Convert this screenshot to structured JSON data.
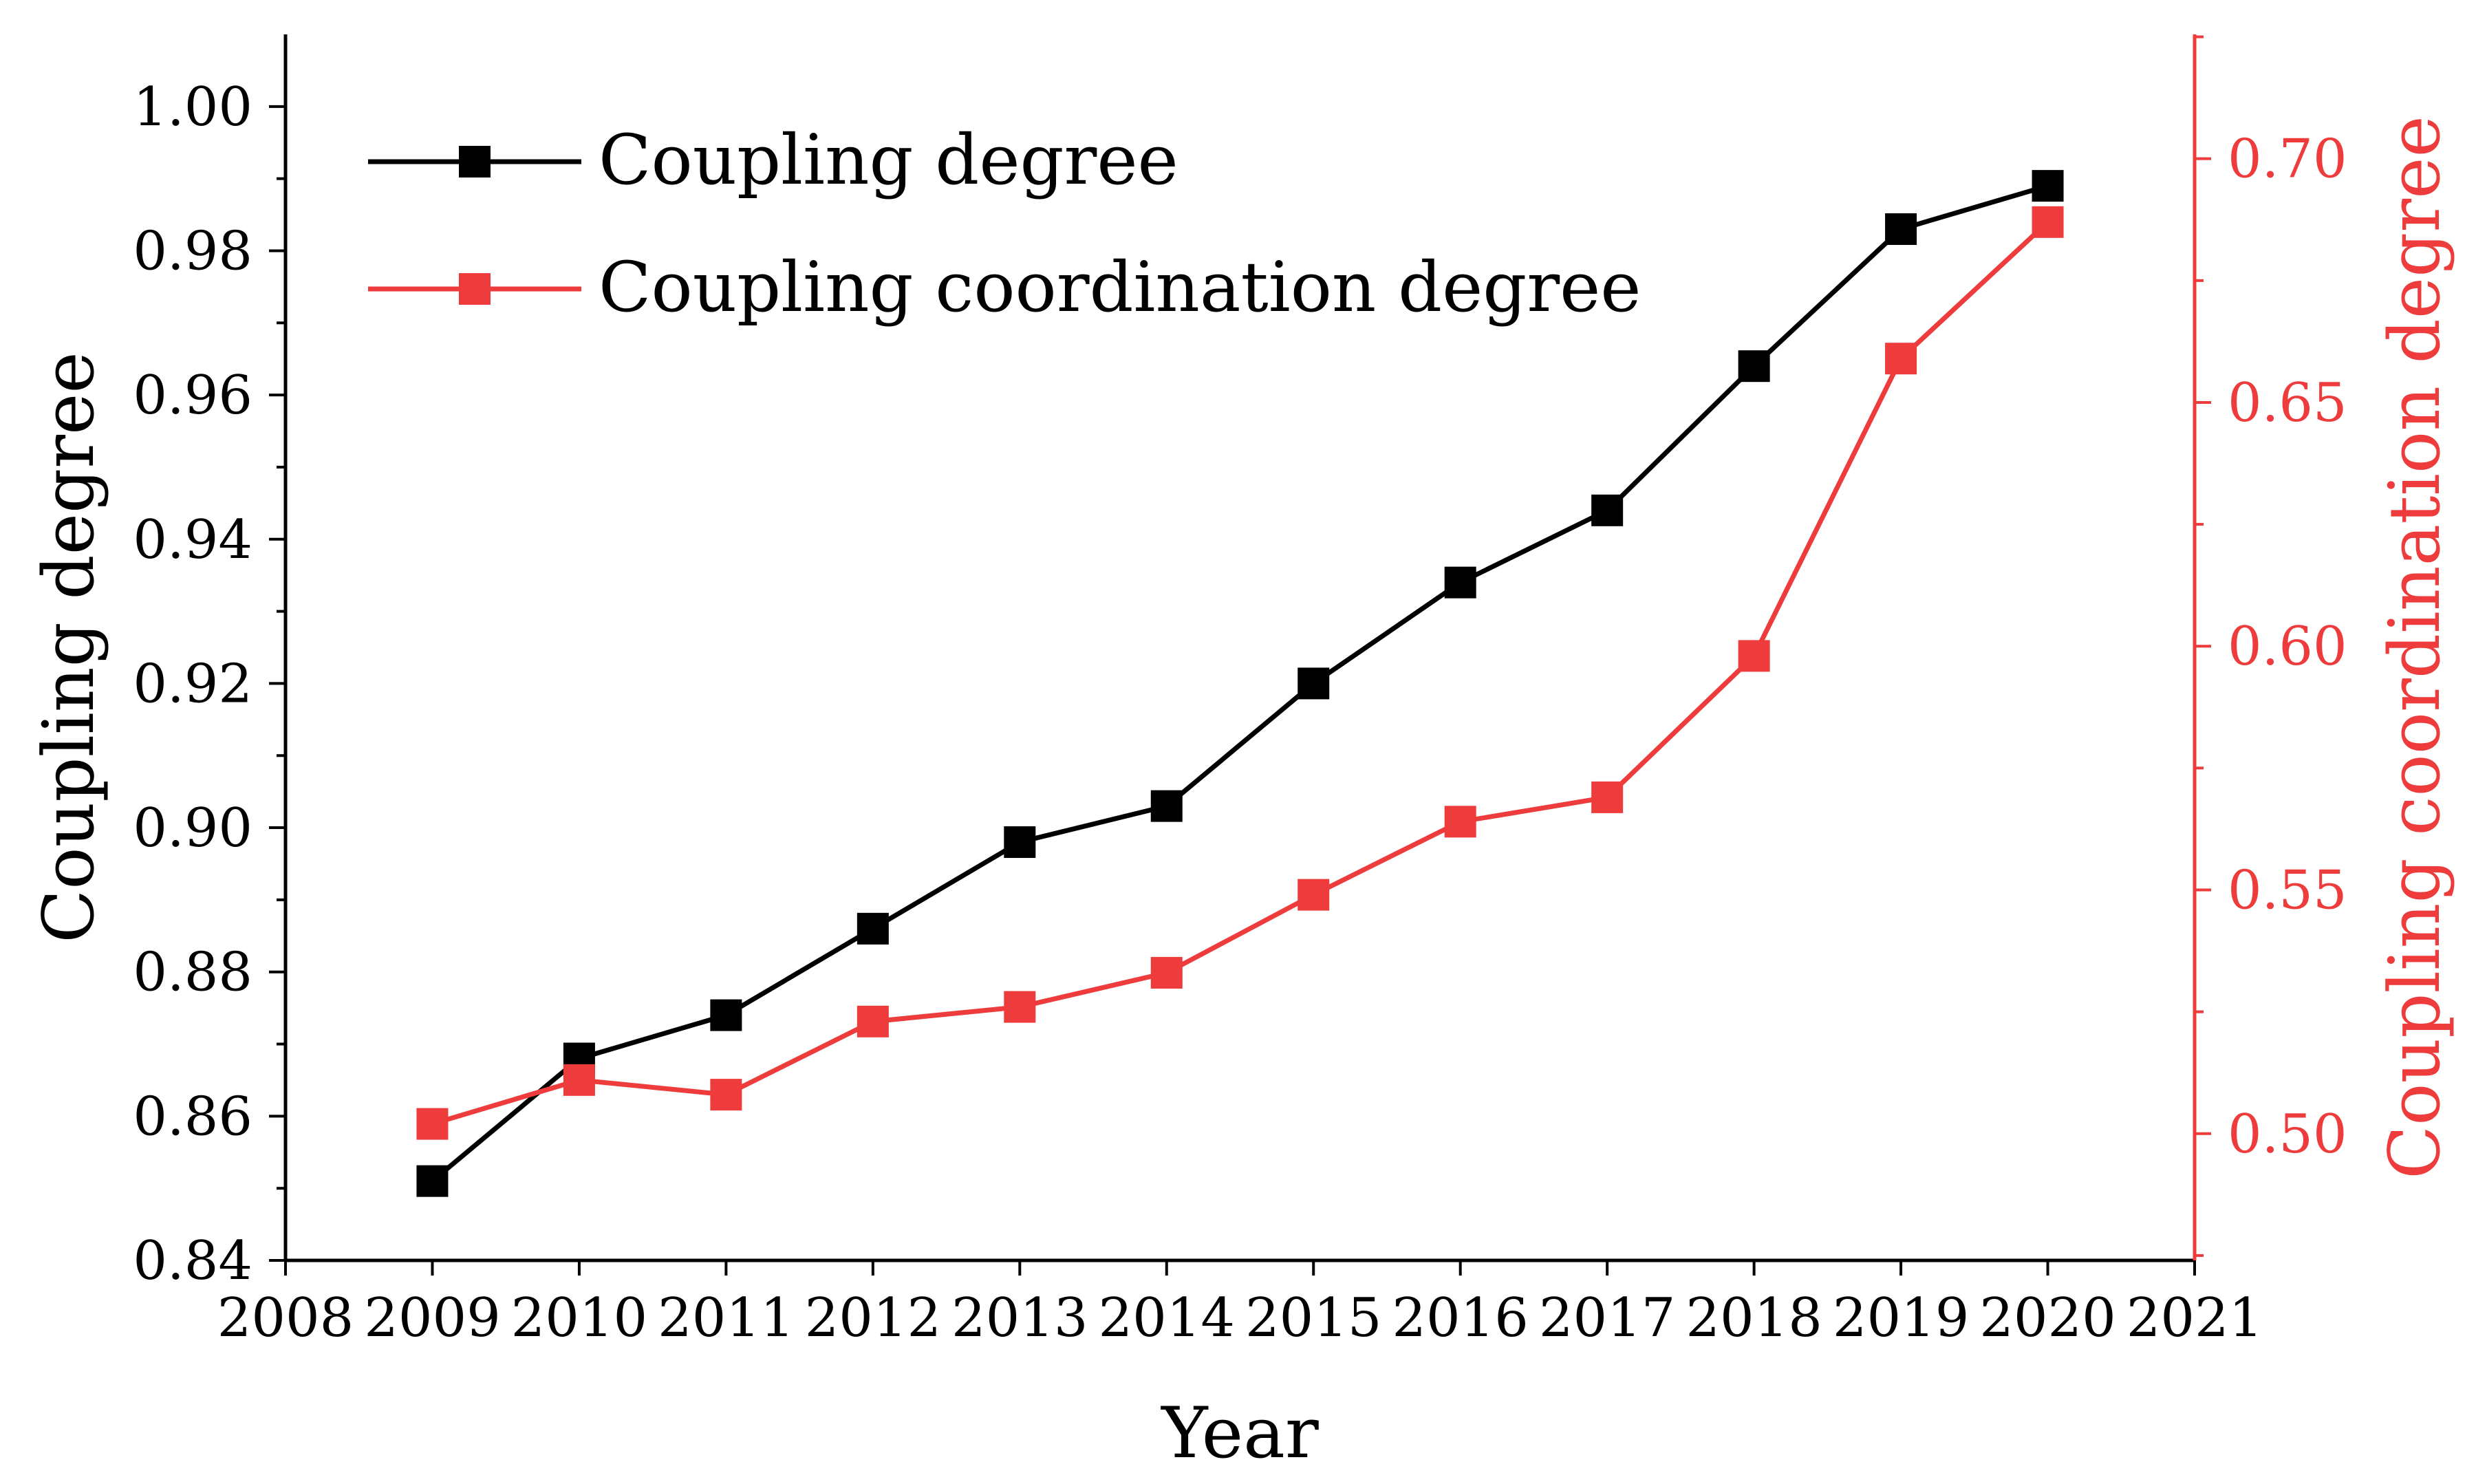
{
  "chart_data": {
    "type": "line",
    "title": "",
    "xlabel": "Year",
    "ylabel": "Coupling degree",
    "y2label": "Coupling coordination degree",
    "x": [
      2009,
      2010,
      2011,
      2012,
      2013,
      2014,
      2015,
      2016,
      2017,
      2018,
      2019,
      2020
    ],
    "xlim": [
      2008,
      2021
    ],
    "xticks": [
      "2008",
      "2009",
      "2010",
      "2011",
      "2012",
      "2013",
      "2014",
      "2015",
      "2016",
      "2017",
      "2018",
      "2019",
      "2020",
      "2021"
    ],
    "ylim": [
      0.84,
      1.01
    ],
    "yticks": [
      "0.84",
      "0.86",
      "0.88",
      "0.90",
      "0.92",
      "0.94",
      "0.96",
      "0.98",
      "1.00"
    ],
    "y2lim": [
      0.474,
      0.7255
    ],
    "y2ticks": [
      "0.50",
      "0.55",
      "0.60",
      "0.65",
      "0.70"
    ],
    "grid": false,
    "legend_position": "top-left",
    "series": [
      {
        "name": "Coupling degree",
        "axis": "left",
        "color": "#000000",
        "marker": "square",
        "values": [
          0.851,
          0.868,
          0.874,
          0.886,
          0.898,
          0.903,
          0.92,
          0.934,
          0.944,
          0.964,
          0.983,
          0.989
        ]
      },
      {
        "name": "Coupling coordination degree",
        "axis": "right",
        "color": "#ee3b3b",
        "marker": "square",
        "values": [
          0.502,
          0.511,
          0.508,
          0.523,
          0.526,
          0.533,
          0.549,
          0.564,
          0.569,
          0.598,
          0.659,
          0.687
        ]
      }
    ]
  }
}
